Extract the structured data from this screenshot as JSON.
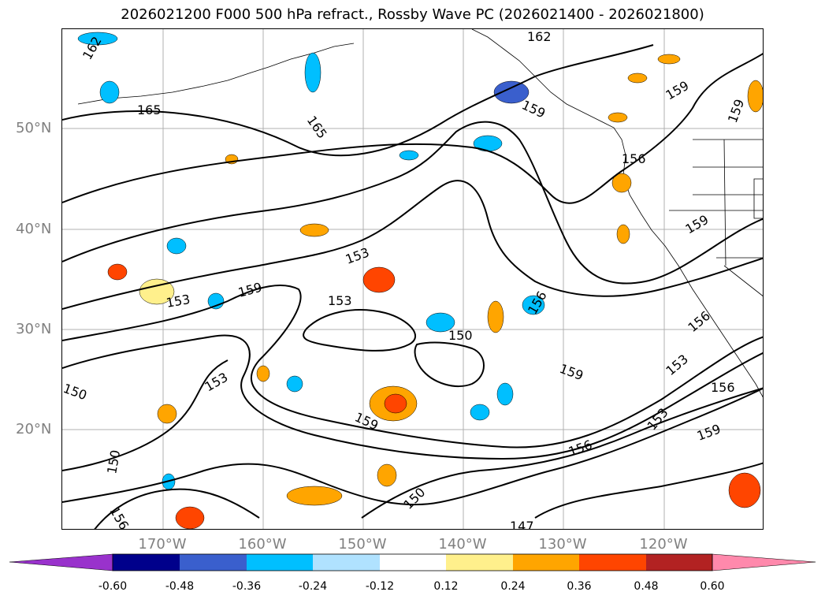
{
  "title": "2026021200 F000 500 hPa refract., Rossby Wave PC (2026021400 - 2026021800)",
  "lat_labels": [
    "50°N",
    "40°N",
    "30°N",
    "20°N"
  ],
  "lon_labels": [
    "170°W",
    "160°W",
    "150°W",
    "140°W",
    "130°W",
    "120°W"
  ],
  "contour_labels": [
    "162",
    "165",
    "165",
    "162",
    "159",
    "159",
    "159",
    "159",
    "156",
    "153",
    "159",
    "153",
    "153",
    "150",
    "156",
    "159",
    "153",
    "156",
    "153",
    "150",
    "153",
    "159",
    "156",
    "159",
    "156",
    "150",
    "156",
    "150",
    "147"
  ],
  "colorbar": {
    "ticks": [
      "-0.60",
      "-0.48",
      "-0.36",
      "-0.24",
      "-0.12",
      "0.12",
      "0.24",
      "0.36",
      "0.48",
      "0.60"
    ],
    "colors": [
      "#9932cc",
      "#00008b",
      "#3a5fcd",
      "#00bfff",
      "#b0e2ff",
      "#ffffff",
      "#fff08c",
      "#ffa500",
      "#ff4500",
      "#b22222",
      "#ff89ac"
    ]
  }
}
